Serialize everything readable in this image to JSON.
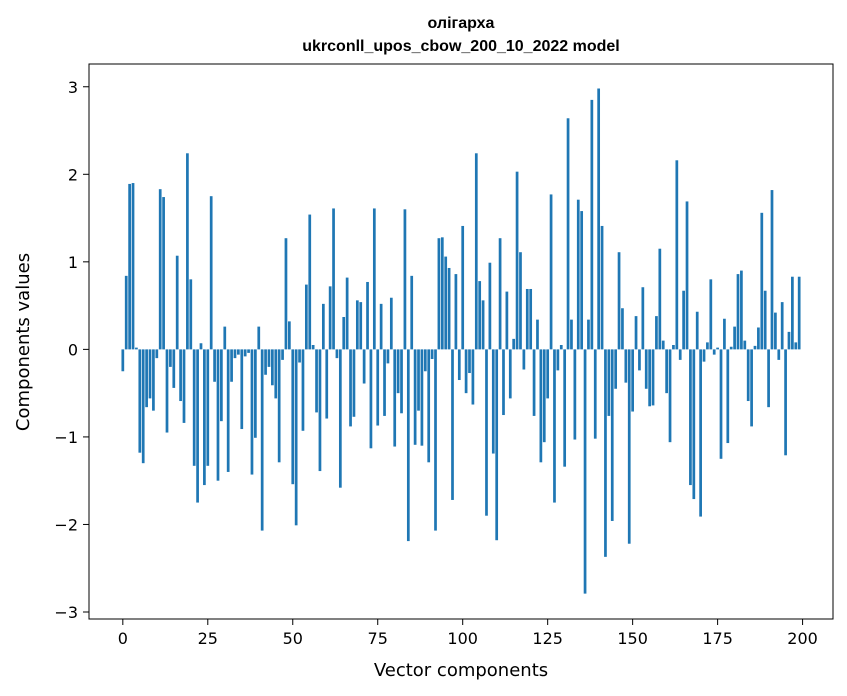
{
  "chart_data": {
    "type": "bar",
    "title": "олігарха",
    "subtitle": "ukrconll_upos_cbow_200_10_2022 model",
    "xlabel": "Vector components",
    "ylabel": "Components values",
    "xlim": [
      -9.95,
      208.95
    ],
    "ylim": [
      -3.08,
      3.26
    ],
    "xticks": [
      0,
      25,
      50,
      75,
      100,
      125,
      150,
      175,
      200
    ],
    "yticks": [
      -3,
      -2,
      -1,
      0,
      1,
      2,
      3
    ],
    "ytick_labels": [
      "−3",
      "−2",
      "−1",
      "0",
      "1",
      "2",
      "3"
    ],
    "grid": false,
    "bar_color": "#1f77b4",
    "values": [
      -0.25,
      0.84,
      1.89,
      1.9,
      0.02,
      -1.18,
      -1.3,
      -0.66,
      -0.56,
      -0.7,
      -0.1,
      1.83,
      1.74,
      -0.95,
      -0.2,
      -0.44,
      1.07,
      -0.59,
      -0.84,
      2.24,
      0.8,
      -1.33,
      -1.75,
      0.07,
      -1.55,
      -1.33,
      1.75,
      -0.37,
      -1.5,
      -0.82,
      0.26,
      -1.4,
      -0.37,
      -0.1,
      -0.06,
      -0.91,
      -0.08,
      -0.04,
      -1.43,
      -1.01,
      0.26,
      -2.07,
      -0.29,
      -0.2,
      -0.41,
      -0.56,
      -1.29,
      -0.12,
      1.27,
      0.32,
      -1.54,
      -2.01,
      -0.15,
      -0.93,
      0.74,
      1.54,
      0.05,
      -0.72,
      -1.39,
      0.52,
      -0.79,
      0.72,
      1.61,
      -0.1,
      -1.58,
      0.37,
      0.82,
      -0.88,
      -0.77,
      0.56,
      0.54,
      -0.39,
      0.77,
      -1.13,
      1.61,
      -0.87,
      0.52,
      -0.76,
      -0.16,
      0.59,
      -1.11,
      -0.5,
      -0.73,
      1.6,
      -2.19,
      0.84,
      -1.09,
      -0.7,
      -1.1,
      -0.25,
      -1.29,
      -0.11,
      -2.07,
      1.27,
      1.28,
      1.06,
      0.93,
      -1.72,
      0.86,
      -0.35,
      1.41,
      -0.5,
      -0.27,
      -0.63,
      2.24,
      0.78,
      0.56,
      -1.9,
      0.99,
      -1.19,
      -2.18,
      1.27,
      -0.75,
      0.66,
      -0.56,
      0.12,
      2.03,
      1.11,
      -0.23,
      0.69,
      0.69,
      -0.76,
      0.34,
      -1.29,
      -1.06,
      -0.56,
      1.77,
      -1.75,
      -0.24,
      0.05,
      -1.34,
      2.64,
      0.34,
      -1.03,
      1.71,
      1.58,
      -2.79,
      0.34,
      2.85,
      -1.02,
      2.98,
      1.41,
      -2.37,
      -0.76,
      -1.96,
      -0.45,
      1.11,
      0.47,
      -0.38,
      -2.22,
      -0.71,
      0.38,
      -0.24,
      0.71,
      -0.45,
      -0.65,
      -0.64,
      0.38,
      1.15,
      0.1,
      -0.5,
      -1.06,
      0.05,
      2.16,
      -0.12,
      0.67,
      1.69,
      -1.55,
      -1.71,
      0.43,
      -1.91,
      -0.14,
      0.08,
      0.8,
      -0.06,
      0.02,
      -1.25,
      0.35,
      -1.07,
      0.03,
      0.26,
      0.86,
      0.9,
      0.1,
      -0.59,
      -0.88,
      0.04,
      0.25,
      1.56,
      0.67,
      -0.66,
      1.82,
      0.42,
      -0.12,
      0.54,
      -1.21,
      0.2,
      0.83,
      0.08,
      0.83
    ]
  }
}
